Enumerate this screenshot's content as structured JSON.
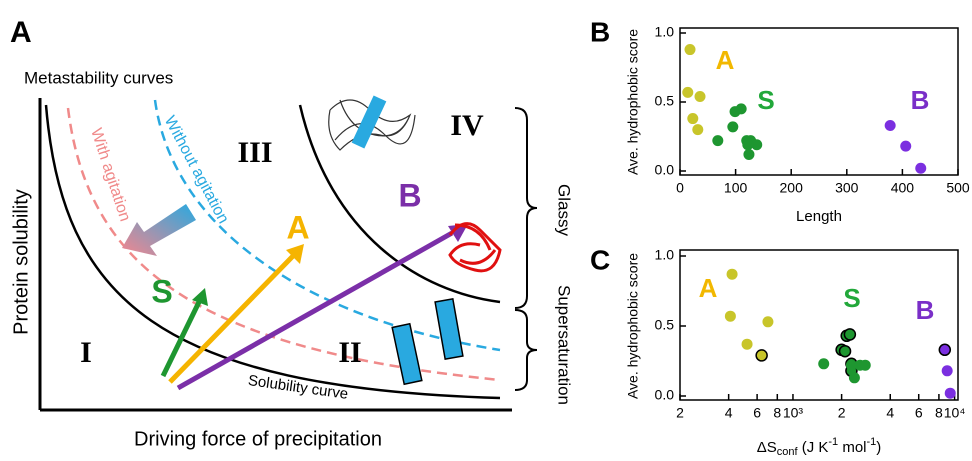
{
  "diagram": {
    "panel": "A",
    "title": "Metastability curves",
    "y_label": "Protein solubility",
    "x_label": "Driving force of precipitation",
    "curves": {
      "solubility": "Solubility curve",
      "with_agitation": "With agitation",
      "without_agitation": "Without agitation"
    },
    "regions": [
      "I",
      "II",
      "III",
      "IV"
    ],
    "arrows": [
      "S",
      "A",
      "B"
    ],
    "brackets": [
      "Glassy",
      "Supersaturation"
    ]
  },
  "chart_data": [
    {
      "type": "scatter",
      "panel": "B",
      "x_label": "Length",
      "y_label": "Ave. hydrophobic score",
      "xlim": [
        0,
        500
      ],
      "xticks": [
        0,
        100,
        200,
        300,
        400,
        500
      ],
      "ylim": [
        0,
        1
      ],
      "yticks": [
        {
          "value": 0,
          "label": "0.0"
        },
        {
          "value": 0.5,
          "label": "0.5"
        },
        {
          "value": 1,
          "label": "1.0"
        }
      ],
      "series": [
        {
          "name": "A",
          "color": "#c8c52a",
          "label_color": "#f2b800",
          "x": [
            18,
            14,
            36,
            23,
            32
          ],
          "values": [
            0.88,
            0.57,
            0.54,
            0.38,
            0.3
          ]
        },
        {
          "name": "S",
          "color": "#1e9630",
          "label_color": "#22a83a",
          "x": [
            68,
            95,
            99,
            110,
            120,
            127,
            122,
            124,
            138
          ],
          "values": [
            0.22,
            0.32,
            0.43,
            0.45,
            0.22,
            0.22,
            0.19,
            0.12,
            0.19
          ]
        },
        {
          "name": "B",
          "color": "#7b2fe0",
          "label_color": "#7a2fc8",
          "x": [
            378,
            406,
            433
          ],
          "values": [
            0.33,
            0.18,
            0.02
          ]
        }
      ]
    },
    {
      "type": "scatter",
      "panel": "C",
      "x_label": [
        "ΔS",
        "conf",
        " (J K",
        "-1",
        " mol",
        "-1",
        ")"
      ],
      "y_label": "Ave. hydrophobic score",
      "xlog": true,
      "xlim": [
        200,
        10500
      ],
      "xticks": [
        {
          "value": 200,
          "label": "2"
        },
        {
          "value": 400,
          "label": "4"
        },
        {
          "value": 600,
          "label": "6"
        },
        {
          "value": 800,
          "label": "8"
        },
        {
          "value": 1000,
          "label": "10³"
        },
        {
          "value": 2000,
          "label": "2"
        },
        {
          "value": 4000,
          "label": "4"
        },
        {
          "value": 6000,
          "label": "6"
        },
        {
          "value": 8000,
          "label": "8"
        },
        {
          "value": 10000,
          "label": "10⁴"
        }
      ],
      "ylim": [
        0,
        1
      ],
      "yticks": [
        {
          "value": 0,
          "label": "0.0"
        },
        {
          "value": 0.5,
          "label": "0.5"
        },
        {
          "value": 1,
          "label": "1.0"
        }
      ],
      "series": [
        {
          "name": "A",
          "color": "#c8c52a",
          "label_color": "#f2b800",
          "x": [
            420,
            410,
            520,
            700,
            640
          ],
          "values": [
            0.87,
            0.57,
            0.37,
            0.53,
            0.29
          ],
          "edgecolor": [
            null,
            null,
            null,
            null,
            "#000000"
          ]
        },
        {
          "name": "S",
          "color": "#1e9630",
          "label_color": "#22a83a",
          "x": [
            1550,
            2000,
            2150,
            2250,
            2100,
            2300,
            2300,
            2400,
            2600,
            2800,
            2300
          ],
          "values": [
            0.23,
            0.33,
            0.43,
            0.44,
            0.32,
            0.23,
            0.18,
            0.13,
            0.22,
            0.22,
            0.22
          ],
          "edgecolor": [
            null,
            "#000000",
            "#000000",
            "#000000",
            "#000000",
            "#000000",
            "#000000",
            null,
            null,
            null,
            null
          ]
        },
        {
          "name": "B",
          "color": "#7b2fe0",
          "label_color": "#7a2fc8",
          "x": [
            8700,
            9000,
            9400
          ],
          "values": [
            0.33,
            0.18,
            0.02
          ],
          "edgecolor": [
            "#000000",
            null,
            null
          ]
        }
      ]
    }
  ]
}
